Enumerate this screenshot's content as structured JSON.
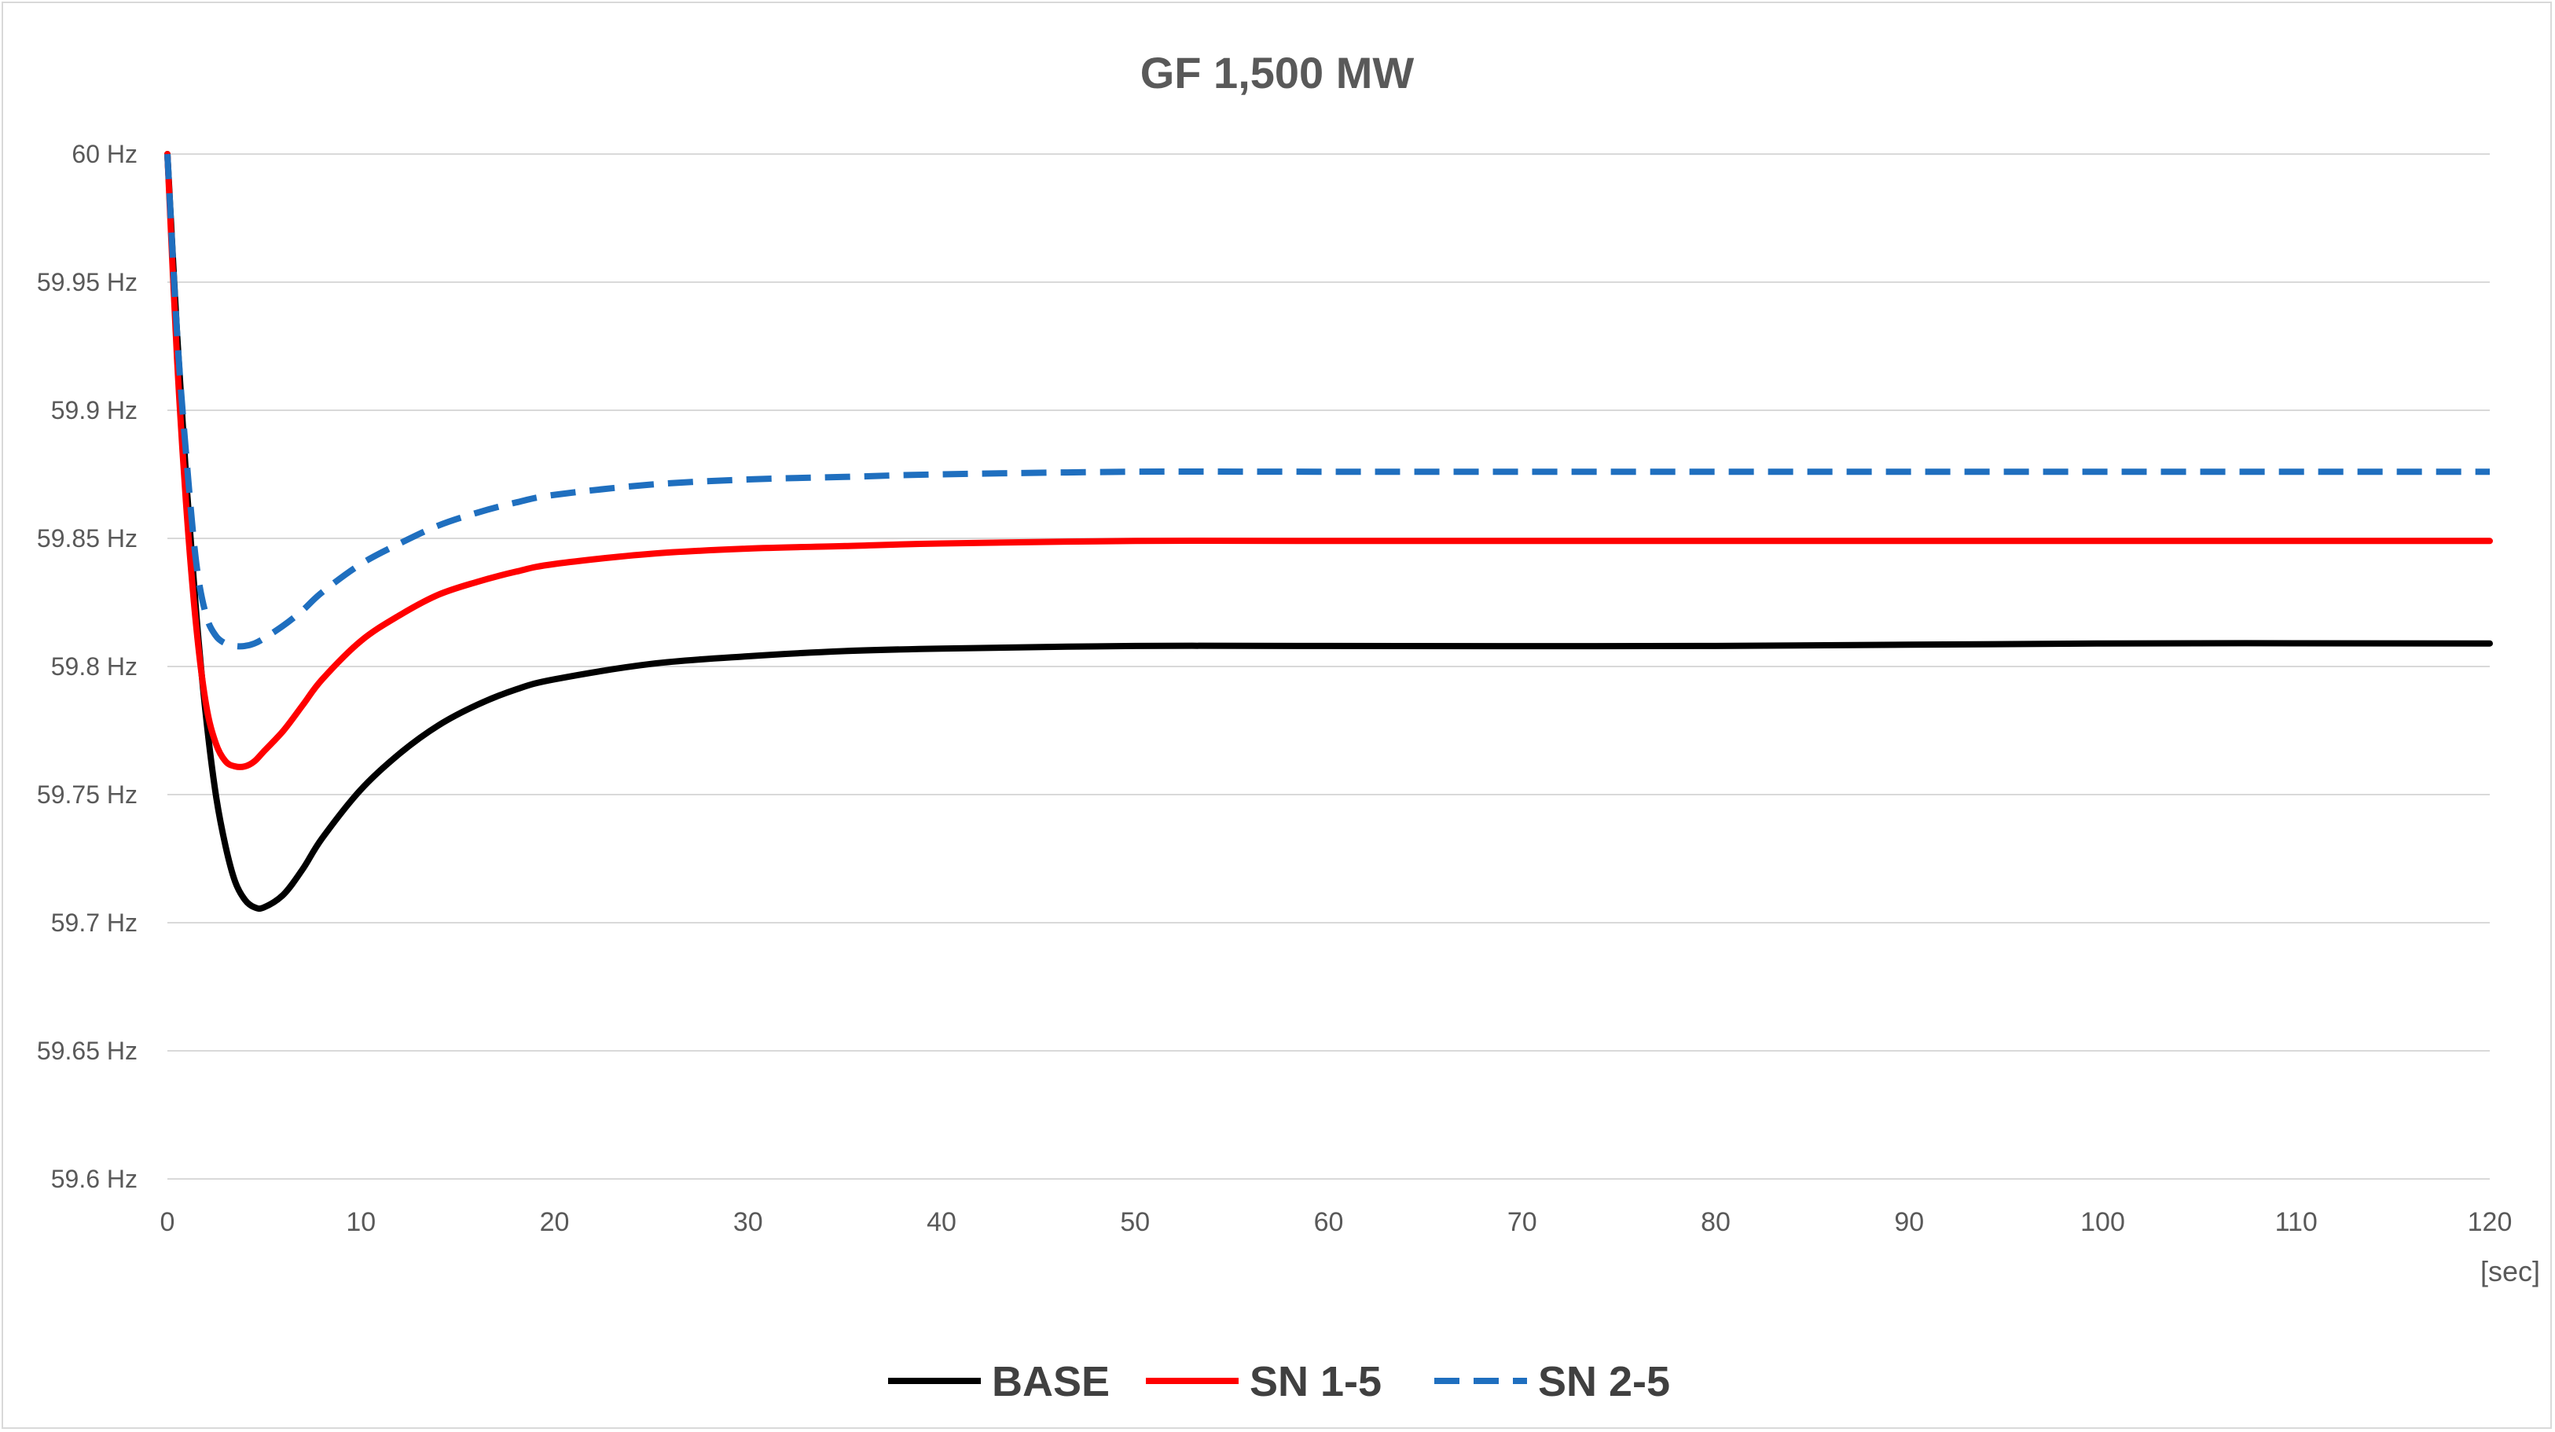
{
  "chart_data": {
    "type": "line",
    "title": "GF 1,500 MW",
    "xlabel": "",
    "ylabel": "",
    "x_unit_label": "[sec]",
    "xlim": [
      0,
      120
    ],
    "ylim": [
      59.6,
      60
    ],
    "x_ticks": [
      0,
      10,
      20,
      30,
      40,
      50,
      60,
      70,
      80,
      90,
      100,
      110,
      120
    ],
    "x_tick_labels": [
      "0",
      "10",
      "20",
      "30",
      "40",
      "50",
      "60",
      "70",
      "80",
      "90",
      "100",
      "110",
      "120"
    ],
    "y_ticks": [
      60,
      59.95,
      59.9,
      59.85,
      59.8,
      59.75,
      59.7,
      59.65,
      59.6
    ],
    "y_tick_labels": [
      "60 Hz",
      "59.95 Hz",
      "59.9 Hz",
      "59.85 Hz",
      "59.8 Hz",
      "59.75 Hz",
      "59.7 Hz",
      "59.65 Hz",
      "59.6 Hz"
    ],
    "grid": "horizontal",
    "legend_position": "bottom",
    "series": [
      {
        "name": "BASE",
        "color": "#000000",
        "dash": "solid",
        "x": [
          0,
          0.5,
          1,
          1.5,
          2,
          2.5,
          3,
          3.5,
          4,
          4.5,
          5,
          6,
          7,
          8,
          10,
          12,
          14,
          16,
          18,
          20,
          25,
          30,
          35,
          40,
          50,
          60,
          80,
          100,
          120
        ],
        "y": [
          60.0,
          59.93,
          59.87,
          59.82,
          59.78,
          59.75,
          59.73,
          59.716,
          59.709,
          59.706,
          59.706,
          59.711,
          59.721,
          59.733,
          59.752,
          59.766,
          59.777,
          59.785,
          59.791,
          59.795,
          59.801,
          59.804,
          59.806,
          59.807,
          59.808,
          59.808,
          59.808,
          59.809,
          59.809
        ]
      },
      {
        "name": "SN 1-5",
        "color": "#ff0000",
        "dash": "solid",
        "x": [
          0,
          0.5,
          1,
          1.5,
          2,
          2.5,
          3,
          3.5,
          4,
          4.5,
          5,
          6,
          7,
          8,
          10,
          12,
          14,
          16,
          18,
          20,
          25,
          30,
          35,
          40,
          50,
          60,
          80,
          100,
          120
        ],
        "y": [
          60.0,
          59.92,
          59.86,
          59.815,
          59.785,
          59.77,
          59.763,
          59.761,
          59.761,
          59.763,
          59.767,
          59.775,
          59.785,
          59.795,
          59.81,
          59.82,
          59.828,
          59.833,
          59.837,
          59.84,
          59.844,
          59.846,
          59.847,
          59.848,
          59.849,
          59.849,
          59.849,
          59.849,
          59.849
        ]
      },
      {
        "name": "SN 2-5",
        "color": "#1f6fbf",
        "dash": "dashed",
        "x": [
          0,
          0.5,
          1,
          1.5,
          2,
          2.5,
          3,
          3.5,
          4,
          4.5,
          5,
          6,
          7,
          8,
          10,
          12,
          14,
          16,
          18,
          20,
          25,
          30,
          35,
          40,
          50,
          60,
          80,
          100,
          120
        ],
        "y": [
          60.0,
          59.93,
          59.88,
          59.84,
          59.82,
          59.812,
          59.809,
          59.808,
          59.808,
          59.809,
          59.811,
          59.816,
          59.822,
          59.829,
          59.84,
          59.848,
          59.855,
          59.86,
          59.864,
          59.867,
          59.871,
          59.873,
          59.874,
          59.875,
          59.876,
          59.876,
          59.876,
          59.876,
          59.876
        ]
      }
    ]
  }
}
